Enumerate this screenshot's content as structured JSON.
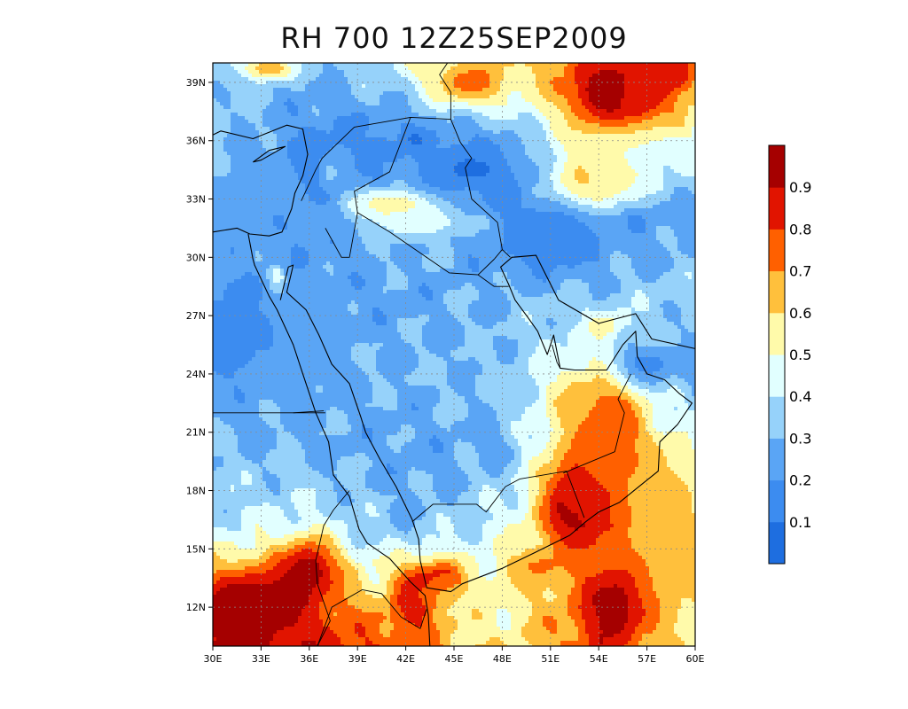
{
  "chart_data": {
    "type": "heatmap",
    "title": "RH 700 12Z25SEP2009",
    "xlim": [
      30,
      60
    ],
    "ylim": [
      10,
      40
    ],
    "x_ticks": [
      {
        "value": 30,
        "label": "30E"
      },
      {
        "value": 33,
        "label": "33E"
      },
      {
        "value": 36,
        "label": "36E"
      },
      {
        "value": 39,
        "label": "39E"
      },
      {
        "value": 42,
        "label": "42E"
      },
      {
        "value": 45,
        "label": "45E"
      },
      {
        "value": 48,
        "label": "48E"
      },
      {
        "value": 51,
        "label": "51E"
      },
      {
        "value": 54,
        "label": "54E"
      },
      {
        "value": 57,
        "label": "57E"
      },
      {
        "value": 60,
        "label": "60E"
      }
    ],
    "y_ticks": [
      {
        "value": 12,
        "label": "12N"
      },
      {
        "value": 15,
        "label": "15N"
      },
      {
        "value": 18,
        "label": "18N"
      },
      {
        "value": 21,
        "label": "21N"
      },
      {
        "value": 24,
        "label": "24N"
      },
      {
        "value": 27,
        "label": "27N"
      },
      {
        "value": 30,
        "label": "30N"
      },
      {
        "value": 33,
        "label": "33N"
      },
      {
        "value": 36,
        "label": "36N"
      },
      {
        "value": 39,
        "label": "39N"
      }
    ],
    "grid": true,
    "colorbar": {
      "levels": [
        0,
        0.1,
        0.2,
        0.3,
        0.4,
        0.5,
        0.6,
        0.7,
        0.8,
        0.9,
        1.0
      ],
      "labels": [
        "0.1",
        "0.2",
        "0.3",
        "0.4",
        "0.5",
        "0.6",
        "0.7",
        "0.8",
        "0.9"
      ],
      "colors": [
        "#1e6ee0",
        "#3c8cf0",
        "#5aa5f5",
        "#96d2fa",
        "#e1ffff",
        "#fffaaa",
        "#ffc03c",
        "#ff6000",
        "#e11400",
        "#a50000"
      ]
    },
    "centers": [
      {
        "lon": 33,
        "lat": 12,
        "rh": 0.97,
        "rx": 3.5,
        "ry": 2.0
      },
      {
        "lon": 31,
        "lat": 11.5,
        "rh": 0.9,
        "rx": 2.0,
        "ry": 1.5
      },
      {
        "lon": 36,
        "lat": 14,
        "rh": 0.9,
        "rx": 1.8,
        "ry": 1.5
      },
      {
        "lon": 42.5,
        "lat": 12.5,
        "rh": 0.92,
        "rx": 1.4,
        "ry": 1.8
      },
      {
        "lon": 44.5,
        "lat": 13.5,
        "rh": 0.82,
        "rx": 1.2,
        "ry": 1.0
      },
      {
        "lon": 45.5,
        "lat": 12.6,
        "rh": 0.55,
        "rx": 3.0,
        "ry": 0.8
      },
      {
        "lon": 55,
        "lat": 12,
        "rh": 0.97,
        "rx": 1.8,
        "ry": 2.0
      },
      {
        "lon": 52.5,
        "lat": 17,
        "rh": 0.95,
        "rx": 2.0,
        "ry": 2.0
      },
      {
        "lon": 54,
        "lat": 19,
        "rh": 0.75,
        "rx": 2.5,
        "ry": 2.5
      },
      {
        "lon": 55,
        "lat": 21.5,
        "rh": 0.8,
        "rx": 1.5,
        "ry": 1.5
      },
      {
        "lon": 53,
        "lat": 22.5,
        "rh": 0.65,
        "rx": 2.0,
        "ry": 1.5
      },
      {
        "lon": 58.5,
        "lat": 16,
        "rh": 0.65,
        "rx": 2.0,
        "ry": 4.0
      },
      {
        "lon": 50,
        "lat": 14,
        "rh": 0.7,
        "rx": 2.0,
        "ry": 1.0
      },
      {
        "lon": 54.5,
        "lat": 38.5,
        "rh": 0.97,
        "rx": 2.5,
        "ry": 1.7
      },
      {
        "lon": 57,
        "lat": 38.5,
        "rh": 0.8,
        "rx": 2.0,
        "ry": 1.5
      },
      {
        "lon": 46,
        "lat": 39,
        "rh": 0.75,
        "rx": 2.5,
        "ry": 1.2
      },
      {
        "lon": 33.5,
        "lat": 39.7,
        "rh": 0.7,
        "rx": 1.5,
        "ry": 0.6
      },
      {
        "lon": 58.5,
        "lat": 39.5,
        "rh": 0.9,
        "rx": 1.5,
        "ry": 0.8
      },
      {
        "lon": 53.5,
        "lat": 34,
        "rh": 0.65,
        "rx": 2.5,
        "ry": 1.5
      },
      {
        "lon": 56,
        "lat": 35,
        "rh": 0.45,
        "rx": 2.5,
        "ry": 1.5
      },
      {
        "lon": 41,
        "lat": 32.8,
        "rh": 0.55,
        "rx": 2.5,
        "ry": 0.7
      },
      {
        "lon": 43,
        "lat": 31.8,
        "rh": 0.45,
        "rx": 3.5,
        "ry": 0.8
      },
      {
        "lon": 37.2,
        "lat": 34.5,
        "rh": 0.45,
        "rx": 0.6,
        "ry": 0.8
      },
      {
        "lon": 34,
        "lat": 29,
        "rh": 0.5,
        "rx": 0.5,
        "ry": 0.6
      },
      {
        "lon": 46,
        "lat": 34.5,
        "rh": 0.08,
        "rx": 3.0,
        "ry": 1.2
      },
      {
        "lon": 51,
        "lat": 31,
        "rh": 0.1,
        "rx": 3.0,
        "ry": 1.8
      },
      {
        "lon": 36.5,
        "lat": 35,
        "rh": 0.12,
        "rx": 1.5,
        "ry": 1.5
      },
      {
        "lon": 32,
        "lat": 33,
        "rh": 0.22,
        "rx": 3.0,
        "ry": 2.0
      },
      {
        "lon": 31.5,
        "lat": 26,
        "rh": 0.15,
        "rx": 2.0,
        "ry": 3.0
      },
      {
        "lon": 36,
        "lat": 26,
        "rh": 0.22,
        "rx": 2.0,
        "ry": 3.0
      },
      {
        "lon": 54.5,
        "lat": 26.5,
        "rh": 0.55,
        "rx": 1.0,
        "ry": 0.6
      },
      {
        "lon": 57,
        "lat": 24.5,
        "rh": 0.15,
        "rx": 2.0,
        "ry": 1.0
      }
    ],
    "base_field": [
      {
        "lon": 30,
        "lat": 40,
        "rh": 0.35
      },
      {
        "lon": 36,
        "lat": 40,
        "rh": 0.3
      },
      {
        "lon": 42,
        "lat": 40,
        "rh": 0.45
      },
      {
        "lon": 48,
        "lat": 40,
        "rh": 0.55
      },
      {
        "lon": 54,
        "lat": 40,
        "rh": 0.75
      },
      {
        "lon": 60,
        "lat": 40,
        "rh": 0.7
      },
      {
        "lon": 30,
        "lat": 36,
        "rh": 0.35
      },
      {
        "lon": 36,
        "lat": 36,
        "rh": 0.2
      },
      {
        "lon": 42,
        "lat": 36,
        "rh": 0.15
      },
      {
        "lon": 48,
        "lat": 36,
        "rh": 0.25
      },
      {
        "lon": 54,
        "lat": 36,
        "rh": 0.55
      },
      {
        "lon": 60,
        "lat": 36,
        "rh": 0.45
      },
      {
        "lon": 30,
        "lat": 32,
        "rh": 0.35
      },
      {
        "lon": 36,
        "lat": 32,
        "rh": 0.2
      },
      {
        "lon": 42,
        "lat": 32,
        "rh": 0.35
      },
      {
        "lon": 48,
        "lat": 32,
        "rh": 0.2
      },
      {
        "lon": 54,
        "lat": 32,
        "rh": 0.2
      },
      {
        "lon": 60,
        "lat": 32,
        "rh": 0.25
      },
      {
        "lon": 30,
        "lat": 28,
        "rh": 0.22
      },
      {
        "lon": 36,
        "lat": 28,
        "rh": 0.25
      },
      {
        "lon": 42,
        "lat": 28,
        "rh": 0.25
      },
      {
        "lon": 48,
        "lat": 28,
        "rh": 0.3
      },
      {
        "lon": 54,
        "lat": 28,
        "rh": 0.35
      },
      {
        "lon": 60,
        "lat": 28,
        "rh": 0.35
      },
      {
        "lon": 30,
        "lat": 24,
        "rh": 0.28
      },
      {
        "lon": 36,
        "lat": 24,
        "rh": 0.28
      },
      {
        "lon": 42,
        "lat": 24,
        "rh": 0.3
      },
      {
        "lon": 48,
        "lat": 24,
        "rh": 0.32
      },
      {
        "lon": 54,
        "lat": 24,
        "rh": 0.55
      },
      {
        "lon": 60,
        "lat": 24,
        "rh": 0.25
      },
      {
        "lon": 30,
        "lat": 20,
        "rh": 0.32
      },
      {
        "lon": 36,
        "lat": 20,
        "rh": 0.28
      },
      {
        "lon": 42,
        "lat": 20,
        "rh": 0.25
      },
      {
        "lon": 48,
        "lat": 20,
        "rh": 0.28
      },
      {
        "lon": 54,
        "lat": 20,
        "rh": 0.7
      },
      {
        "lon": 60,
        "lat": 20,
        "rh": 0.45
      },
      {
        "lon": 30,
        "lat": 16,
        "rh": 0.4
      },
      {
        "lon": 36,
        "lat": 16,
        "rh": 0.45
      },
      {
        "lon": 42,
        "lat": 16,
        "rh": 0.3
      },
      {
        "lon": 48,
        "lat": 16,
        "rh": 0.45
      },
      {
        "lon": 54,
        "lat": 16,
        "rh": 0.7
      },
      {
        "lon": 60,
        "lat": 16,
        "rh": 0.6
      },
      {
        "lon": 30,
        "lat": 10,
        "rh": 0.9
      },
      {
        "lon": 36,
        "lat": 10,
        "rh": 0.85
      },
      {
        "lon": 42,
        "lat": 10,
        "rh": 0.75
      },
      {
        "lon": 48,
        "lat": 10,
        "rh": 0.55
      },
      {
        "lon": 54,
        "lat": 10,
        "rh": 0.8
      },
      {
        "lon": 60,
        "lat": 10,
        "rh": 0.55
      }
    ],
    "coastlines": [
      [
        [
          30,
          31.3
        ],
        [
          31.5,
          31.5
        ],
        [
          32.3,
          31.2
        ],
        [
          33.5,
          31.1
        ],
        [
          34.3,
          31.3
        ],
        [
          34.9,
          32.5
        ],
        [
          35.1,
          33.3
        ],
        [
          35.6,
          34.2
        ],
        [
          35.9,
          35.3
        ],
        [
          35.6,
          36.6
        ],
        [
          34.6,
          36.8
        ],
        [
          32.5,
          36.1
        ],
        [
          30.5,
          36.5
        ],
        [
          30,
          36.3
        ]
      ],
      [
        [
          32.2,
          31.2
        ],
        [
          32.5,
          29.9
        ],
        [
          32.6,
          29.6
        ],
        [
          33.5,
          28.0
        ],
        [
          34.0,
          27.3
        ],
        [
          35.0,
          25.5
        ],
        [
          35.6,
          24.0
        ],
        [
          36.4,
          22.0
        ],
        [
          37.2,
          20.5
        ],
        [
          37.5,
          18.8
        ],
        [
          38.5,
          17.7
        ],
        [
          39.1,
          16.0
        ],
        [
          39.6,
          15.3
        ],
        [
          41.0,
          14.5
        ],
        [
          42.3,
          13.3
        ],
        [
          43.2,
          12.6
        ],
        [
          43.4,
          11.6
        ],
        [
          43.5,
          10
        ]
      ],
      [
        [
          34.2,
          27.8
        ],
        [
          34.7,
          29.5
        ],
        [
          35.0,
          29.6
        ],
        [
          34.6,
          28.2
        ],
        [
          35.8,
          27.3
        ],
        [
          36.6,
          26.0
        ],
        [
          37.4,
          24.5
        ],
        [
          38.5,
          23.5
        ],
        [
          39.2,
          21.8
        ],
        [
          39.5,
          21.0
        ],
        [
          40.4,
          19.6
        ],
        [
          41.4,
          18.2
        ],
        [
          42.4,
          16.5
        ],
        [
          42.8,
          15.5
        ],
        [
          42.9,
          14.4
        ],
        [
          43.3,
          13.0
        ],
        [
          44.8,
          12.8
        ],
        [
          45.5,
          13.2
        ],
        [
          48.0,
          14.0
        ],
        [
          50.0,
          14.8
        ],
        [
          52.2,
          15.7
        ],
        [
          53.2,
          16.4
        ],
        [
          54.0,
          16.9
        ],
        [
          55.3,
          17.4
        ],
        [
          56.5,
          18.2
        ],
        [
          57.7,
          19.0
        ],
        [
          57.8,
          20.5
        ],
        [
          58.9,
          21.4
        ],
        [
          59.8,
          22.5
        ],
        [
          59.0,
          23.0
        ],
        [
          58.1,
          23.7
        ],
        [
          57.0,
          24.0
        ],
        [
          56.4,
          24.9
        ],
        [
          56.3,
          26.2
        ],
        [
          55.5,
          25.5
        ],
        [
          54.5,
          24.2
        ],
        [
          52.5,
          24.2
        ],
        [
          51.6,
          24.3
        ],
        [
          51.2,
          26.0
        ],
        [
          50.8,
          25.0
        ],
        [
          50.2,
          26.2
        ],
        [
          49.6,
          26.9
        ],
        [
          48.8,
          27.8
        ],
        [
          48.4,
          28.6
        ],
        [
          47.9,
          29.5
        ],
        [
          48.6,
          30.0
        ],
        [
          50.1,
          30.1
        ],
        [
          51.5,
          27.8
        ],
        [
          54.0,
          26.6
        ],
        [
          56.3,
          27.1
        ],
        [
          57.3,
          25.8
        ],
        [
          60,
          25.3
        ]
      ],
      [
        [
          32.5,
          34.9
        ],
        [
          33.5,
          35.5
        ],
        [
          34.5,
          35.7
        ],
        [
          33.0,
          35.0
        ],
        [
          32.5,
          34.9
        ]
      ]
    ],
    "borders": [
      [
        [
          35.5,
          32.9
        ],
        [
          36.4,
          34.5
        ],
        [
          36.8,
          35.1
        ],
        [
          38.8,
          36.7
        ],
        [
          42.3,
          37.2
        ],
        [
          44.8,
          37.1
        ],
        [
          44.8,
          38.5
        ],
        [
          44.1,
          39.4
        ],
        [
          44.6,
          40
        ]
      ],
      [
        [
          39.0,
          32.3
        ],
        [
          38.8,
          33.4
        ],
        [
          41.0,
          34.4
        ],
        [
          42.3,
          37.2
        ]
      ],
      [
        [
          37.0,
          31.5
        ],
        [
          38.0,
          30.0
        ],
        [
          38.5,
          30.0
        ],
        [
          39.0,
          32.3
        ],
        [
          41.0,
          31.3
        ],
        [
          44.7,
          29.2
        ],
        [
          46.5,
          29.1
        ],
        [
          47.5,
          29.9
        ],
        [
          48.0,
          30.4
        ],
        [
          48.5,
          30.0
        ]
      ],
      [
        [
          46.5,
          29.1
        ],
        [
          47.5,
          28.5
        ],
        [
          48.4,
          28.5
        ]
      ],
      [
        [
          44.8,
          37.1
        ],
        [
          45.4,
          35.9
        ],
        [
          46.1,
          35.1
        ],
        [
          45.7,
          34.6
        ],
        [
          46.1,
          33.0
        ],
        [
          47.7,
          31.8
        ],
        [
          48.0,
          30.4
        ]
      ],
      [
        [
          30,
          22
        ],
        [
          37,
          22
        ]
      ],
      [
        [
          35.0,
          22.0
        ],
        [
          36.9,
          22.1
        ]
      ],
      [
        [
          38.5,
          18.0
        ],
        [
          37.5,
          17.0
        ],
        [
          36.9,
          16.2
        ],
        [
          36.4,
          14.4
        ],
        [
          36.5,
          13.2
        ],
        [
          37.3,
          11.3
        ],
        [
          36.5,
          10
        ]
      ],
      [
        [
          42.4,
          16.4
        ],
        [
          43.7,
          17.3
        ],
        [
          46.4,
          17.3
        ],
        [
          47.0,
          16.9
        ],
        [
          48.2,
          18.2
        ],
        [
          49.1,
          18.6
        ],
        [
          52.0,
          19.0
        ],
        [
          53.1,
          16.6
        ]
      ],
      [
        [
          51.8,
          18.9
        ],
        [
          55.0,
          20.0
        ],
        [
          55.6,
          22.0
        ],
        [
          55.2,
          22.7
        ],
        [
          56.0,
          24.0
        ]
      ],
      [
        [
          51.6,
          24.3
        ],
        [
          51.4,
          24.6
        ],
        [
          51.1,
          25.5
        ]
      ],
      [
        [
          41.7,
          11.5
        ],
        [
          42.9,
          10.9
        ],
        [
          43.3,
          11.9
        ]
      ],
      [
        [
          36.5,
          10
        ],
        [
          37.4,
          12
        ],
        [
          39.3,
          12.9
        ],
        [
          40.5,
          12.7
        ],
        [
          41.7,
          11.5
        ]
      ]
    ]
  }
}
